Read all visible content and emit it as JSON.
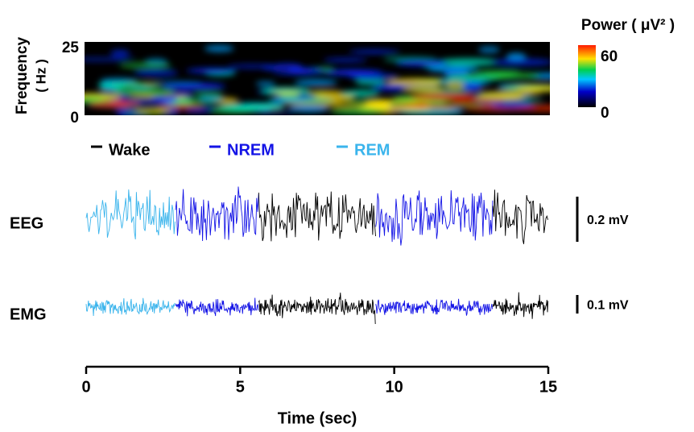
{
  "spectrogram": {
    "ylabel": "Frequency",
    "ylabel_unit": "( Hz )",
    "ylim": [
      0,
      25
    ],
    "yticks": [
      0,
      25
    ]
  },
  "colorbar": {
    "title": "Power ( μV² )",
    "lim": [
      0,
      60
    ],
    "ticks": [
      0,
      60
    ]
  },
  "chart_data": {
    "type": "trace",
    "xlabel": "Time (sec)",
    "xlim": [
      0,
      15
    ],
    "xticks": [
      0,
      5,
      10,
      15
    ],
    "stages": [
      {
        "name": "Wake",
        "color": "#000000"
      },
      {
        "name": "NREM",
        "color": "#1414e6"
      },
      {
        "name": "REM",
        "color": "#3ab4ec"
      }
    ],
    "epochs": [
      {
        "stage": 2,
        "start": 0,
        "end": 2.9
      },
      {
        "stage": 1,
        "start": 2.9,
        "end": 5.6
      },
      {
        "stage": 0,
        "start": 5.6,
        "end": 9.4
      },
      {
        "stage": 1,
        "start": 9.4,
        "end": 13.2
      },
      {
        "stage": 0,
        "start": 13.2,
        "end": 15
      }
    ],
    "channels": [
      {
        "name": "EEG",
        "scale": "0.2 mV"
      },
      {
        "name": "EMG",
        "scale": "0.1 mV"
      }
    ]
  }
}
